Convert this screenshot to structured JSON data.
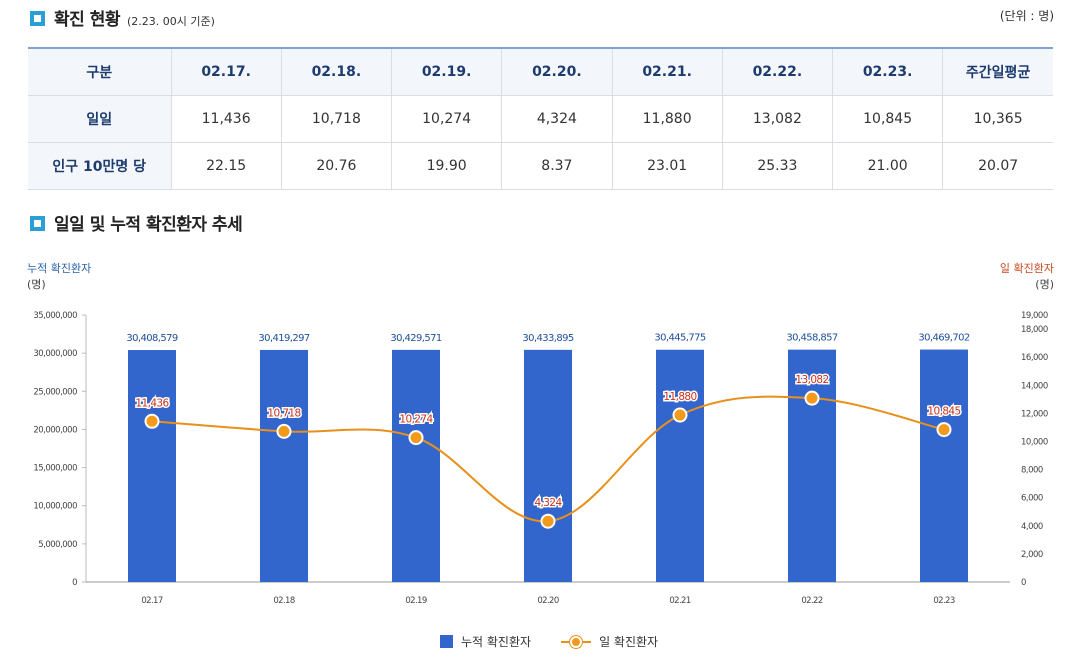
{
  "section1": {
    "title": "확진 현황",
    "subtitle": "(2.23. 00시 기준)",
    "unit": "(단위 : 명)"
  },
  "table": {
    "headers": [
      "구분",
      "02.17.",
      "02.18.",
      "02.19.",
      "02.20.",
      "02.21.",
      "02.22.",
      "02.23.",
      "주간일평균"
    ],
    "rows": [
      {
        "label": "일일",
        "values": [
          "11,436",
          "10,718",
          "10,274",
          "4,324",
          "11,880",
          "13,082",
          "10,845",
          "10,365"
        ]
      },
      {
        "label": "인구 10만명 당",
        "values": [
          "22.15",
          "20.76",
          "19.90",
          "8.37",
          "23.01",
          "25.33",
          "21.00",
          "20.07"
        ]
      }
    ]
  },
  "section2": {
    "title": "일일 및 누적 확진환자 추세"
  },
  "axis_titles": {
    "left": "누적 확진환자",
    "left_unit": "(명)",
    "right": "일 확진환자",
    "right_unit": "(명)"
  },
  "colors": {
    "bar": "#3366cc",
    "line": "#e8901c",
    "point": "#f39a1c",
    "bar_label": "#1e4f9c",
    "line_label": "#c8321e"
  },
  "chart_data": {
    "type": "bar+line",
    "categories": [
      "02.17",
      "02.18",
      "02.19",
      "02.20",
      "02.21",
      "02.22",
      "02.23"
    ],
    "series": [
      {
        "name": "누적 확진환자",
        "kind": "bar",
        "axis": "left",
        "values": [
          30408579,
          30419297,
          30429571,
          30433895,
          30445775,
          30458857,
          30469702
        ],
        "labels": [
          "30,408,579",
          "30,419,297",
          "30,429,571",
          "30,433,895",
          "30,445,775",
          "30,458,857",
          "30,469,702"
        ]
      },
      {
        "name": "일 확진환자",
        "kind": "line",
        "axis": "right",
        "values": [
          11436,
          10718,
          10274,
          4324,
          11880,
          13082,
          10845
        ],
        "labels": [
          "11,436",
          "10,718",
          "10,274",
          "4,324",
          "11,880",
          "13,082",
          "10,845"
        ]
      }
    ],
    "left_axis": {
      "min": 0,
      "max": 35000000,
      "ticks": [
        0,
        5000000,
        10000000,
        15000000,
        20000000,
        25000000,
        30000000,
        35000000
      ],
      "tick_labels": [
        "0",
        "5,000,000",
        "10,000,000",
        "15,000,000",
        "20,000,000",
        "25,000,000",
        "30,000,000",
        "35,000,000"
      ]
    },
    "right_axis": {
      "min": 0,
      "max": 19000,
      "ticks": [
        0,
        2000,
        4000,
        6000,
        8000,
        10000,
        12000,
        14000,
        16000,
        18000,
        19000
      ],
      "tick_labels": [
        "0",
        "2,000",
        "4,000",
        "6,000",
        "8,000",
        "10,000",
        "12,000",
        "14,000",
        "16,000",
        "18,000",
        "19,000"
      ]
    }
  }
}
